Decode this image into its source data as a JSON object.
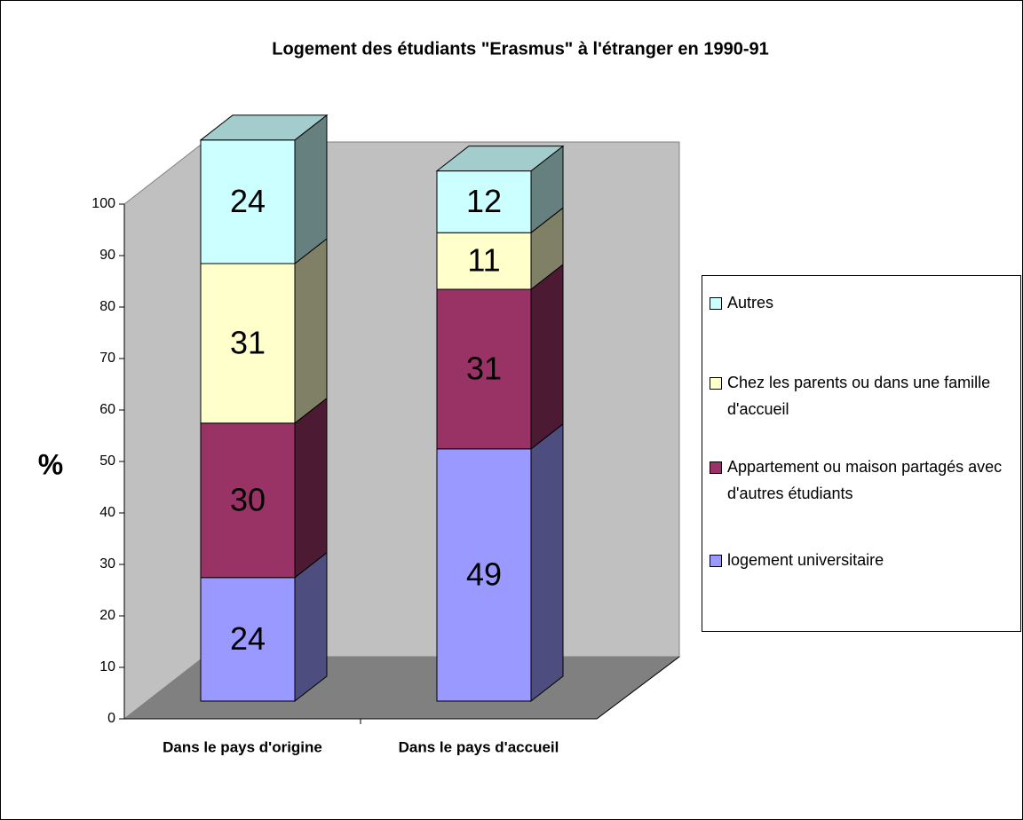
{
  "chart_data": {
    "type": "bar3d_stacked",
    "title": "Logement des étudiants \"Erasmus\" à l'étranger en 1990-91",
    "y_label": "%",
    "categories": [
      "Dans le pays d'origine",
      "Dans le pays d'accueil"
    ],
    "series": [
      {
        "name": "logement universitaire",
        "color": "#9999ff",
        "values": [
          24,
          49
        ]
      },
      {
        "name": "Appartement ou maison partagés avec d'autres étudiants",
        "color": "#993366",
        "values": [
          30,
          31
        ]
      },
      {
        "name": "Chez les parents ou dans une famille d'accueil",
        "color": "#ffffcc",
        "values": [
          31,
          11
        ]
      },
      {
        "name": "Autres",
        "color": "#ccffff",
        "values": [
          24,
          12
        ]
      }
    ],
    "ylim": [
      0,
      100
    ],
    "yticks": [
      0,
      10,
      20,
      30,
      40,
      50,
      60,
      70,
      80,
      90,
      100
    ],
    "grid": false,
    "legend": "right"
  }
}
